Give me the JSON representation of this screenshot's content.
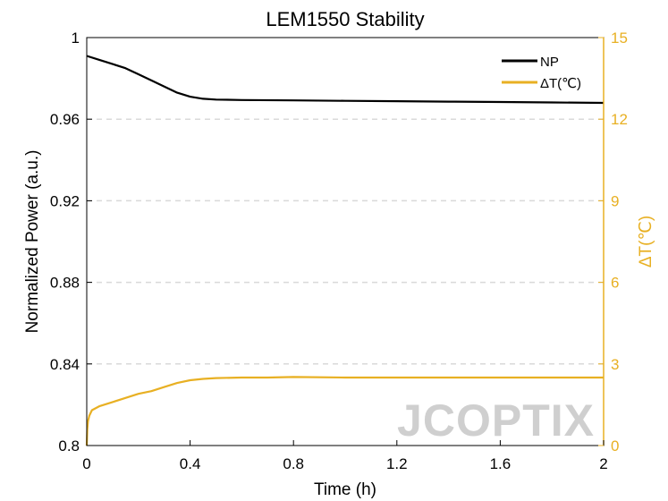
{
  "chart_data": {
    "type": "line",
    "title": "LEM1550 Stability",
    "xlabel": "Time (h)",
    "ylabel": "Normalized Power (a.u.)",
    "y2label": "ΔT(℃)",
    "xlim": [
      0,
      2
    ],
    "ylim": [
      0.8,
      1.0
    ],
    "y2lim": [
      0,
      15
    ],
    "x_ticks": [
      "0",
      "0.4",
      "0.8",
      "1.2",
      "1.6",
      "2"
    ],
    "x_tick_values": [
      0,
      0.4,
      0.8,
      1.2,
      1.6,
      2.0
    ],
    "y_ticks": [
      "0.8",
      "0.84",
      "0.88",
      "0.92",
      "0.96",
      "1"
    ],
    "y_tick_values": [
      0.8,
      0.84,
      0.88,
      0.92,
      0.96,
      1.0
    ],
    "y2_ticks": [
      "0",
      "3",
      "6",
      "9",
      "12",
      "15"
    ],
    "y2_tick_values": [
      0,
      3,
      6,
      9,
      12,
      15
    ],
    "grid": "horizontal dashed",
    "legend_position": "top-right",
    "series": [
      {
        "name": "NP",
        "axis": "left",
        "color": "#000000",
        "x": [
          0,
          0.05,
          0.1,
          0.15,
          0.2,
          0.25,
          0.3,
          0.35,
          0.4,
          0.45,
          0.5,
          0.6,
          0.8,
          1.0,
          1.2,
          1.4,
          1.6,
          1.8,
          2.0
        ],
        "y": [
          0.991,
          0.989,
          0.987,
          0.985,
          0.982,
          0.979,
          0.976,
          0.973,
          0.971,
          0.97,
          0.9696,
          0.9694,
          0.9692,
          0.969,
          0.9688,
          0.9686,
          0.9684,
          0.9682,
          0.968
        ]
      },
      {
        "name": "ΔT(℃)",
        "axis": "right",
        "color": "#e8b023",
        "x": [
          0,
          0.002,
          0.005,
          0.01,
          0.02,
          0.05,
          0.1,
          0.15,
          0.2,
          0.25,
          0.3,
          0.35,
          0.4,
          0.45,
          0.5,
          0.6,
          0.7,
          0.8,
          1.0,
          1.2,
          1.4,
          1.6,
          1.8,
          2.0
        ],
        "y": [
          0,
          0.6,
          0.9,
          1.1,
          1.3,
          1.45,
          1.6,
          1.75,
          1.9,
          2.0,
          2.15,
          2.3,
          2.4,
          2.45,
          2.48,
          2.5,
          2.5,
          2.52,
          2.5,
          2.5,
          2.5,
          2.5,
          2.5,
          2.5
        ]
      }
    ],
    "watermark": "JCOPTIX"
  }
}
